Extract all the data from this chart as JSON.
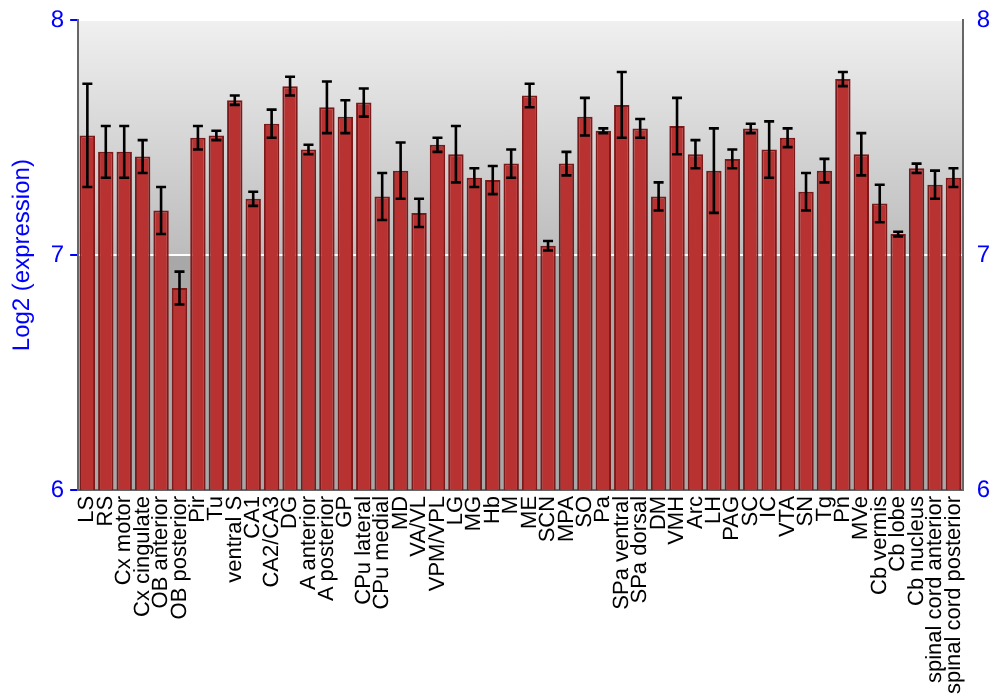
{
  "chart_data": {
    "type": "bar",
    "ylabel": "Log2 (expression)",
    "categories": [
      "LS",
      "RS",
      "Cx motor",
      "Cx cingulate",
      "OB anterior",
      "OB posterior",
      "Pir",
      "Tu",
      "ventral S",
      "CA1",
      "CA2/CA3",
      "DG",
      "A anterior",
      "A posterior",
      "GP",
      "CPu lateral",
      "CPu medial",
      "MD",
      "VA/VL",
      "VPM/VPL",
      "LG",
      "MG",
      "Hb",
      "M",
      "ME",
      "SCN",
      "MPA",
      "SO",
      "Pa",
      "SPa ventral",
      "SPa dorsal",
      "DM",
      "VMH",
      "Arc",
      "LH",
      "PAG",
      "SC",
      "IC",
      "VTA",
      "SN",
      "Tg",
      "Pn",
      "MVe",
      "Cb vermis",
      "Cb lobe",
      "Cb nucleus",
      "spinal cord anterior",
      "spinal cord posterior"
    ],
    "values": [
      7.51,
      7.44,
      7.44,
      7.42,
      7.19,
      6.86,
      7.5,
      7.51,
      7.66,
      7.24,
      7.56,
      7.72,
      7.45,
      7.63,
      7.59,
      7.65,
      7.25,
      7.36,
      7.18,
      7.47,
      7.43,
      7.33,
      7.32,
      7.39,
      7.68,
      7.04,
      7.39,
      7.59,
      7.53,
      7.64,
      7.54,
      7.25,
      7.55,
      7.43,
      7.36,
      7.41,
      7.54,
      7.45,
      7.5,
      7.27,
      7.36,
      7.75,
      7.43,
      7.22,
      7.09,
      7.37,
      7.3,
      7.33
    ],
    "errors": [
      0.22,
      0.11,
      0.11,
      0.07,
      0.1,
      0.07,
      0.05,
      0.02,
      0.02,
      0.03,
      0.06,
      0.04,
      0.02,
      0.11,
      0.07,
      0.06,
      0.1,
      0.12,
      0.06,
      0.03,
      0.12,
      0.04,
      0.06,
      0.06,
      0.05,
      0.02,
      0.05,
      0.08,
      0.01,
      0.14,
      0.04,
      0.06,
      0.12,
      0.06,
      0.18,
      0.04,
      0.02,
      0.12,
      0.04,
      0.08,
      0.05,
      0.03,
      0.09,
      0.08,
      0.01,
      0.02,
      0.06,
      0.04
    ],
    "color": "#b83232",
    "ylim": [
      6,
      8
    ],
    "yticks": [
      6,
      7,
      8
    ],
    "y2lim": [
      6,
      8
    ],
    "y2ticks": [
      6,
      7,
      8
    ],
    "grid": "y",
    "legend": false
  }
}
